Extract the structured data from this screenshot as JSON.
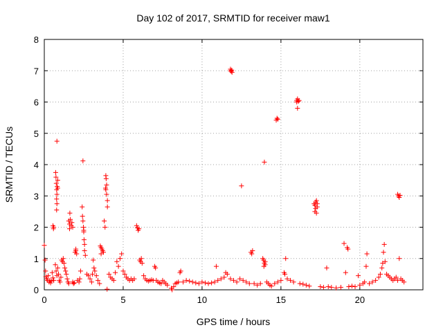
{
  "chart_data": {
    "type": "scatter",
    "title": "Day 102 of 2017, SRMTID for receiver maw1",
    "xlabel": "GPS time / hours",
    "ylabel": "SRMTID / TECUs",
    "xlim": [
      0,
      24
    ],
    "ylim": [
      0,
      8
    ],
    "xticks": [
      0,
      5,
      10,
      15,
      20
    ],
    "yticks": [
      0,
      1,
      2,
      3,
      4,
      5,
      6,
      7,
      8
    ],
    "grid": true,
    "marker": "+",
    "color": "#ff0000",
    "series": [
      {
        "name": "SRMTID",
        "points": [
          [
            0.0,
            1.42
          ],
          [
            0.05,
            0.95
          ],
          [
            0.08,
            0.6
          ],
          [
            0.1,
            0.42
          ],
          [
            0.15,
            0.35
          ],
          [
            0.2,
            0.3
          ],
          [
            0.25,
            0.45
          ],
          [
            0.3,
            0.25
          ],
          [
            0.35,
            0.3
          ],
          [
            0.4,
            0.22
          ],
          [
            0.45,
            0.28
          ],
          [
            0.5,
            0.55
          ],
          [
            0.55,
            0.38
          ],
          [
            0.6,
            0.3
          ],
          [
            0.55,
            2.05
          ],
          [
            0.6,
            2.0
          ],
          [
            0.58,
            1.95
          ],
          [
            0.72,
            3.75
          ],
          [
            0.74,
            3.6
          ],
          [
            0.76,
            3.4
          ],
          [
            0.78,
            3.2
          ],
          [
            0.8,
            3.05
          ],
          [
            0.78,
            2.9
          ],
          [
            0.8,
            2.75
          ],
          [
            0.82,
            3.3
          ],
          [
            0.85,
            3.25
          ],
          [
            0.8,
            4.75
          ],
          [
            0.85,
            3.5
          ],
          [
            0.78,
            2.55
          ],
          [
            0.7,
            0.8
          ],
          [
            0.75,
            0.6
          ],
          [
            0.8,
            0.45
          ],
          [
            0.85,
            0.7
          ],
          [
            0.9,
            0.5
          ],
          [
            0.95,
            0.3
          ],
          [
            1.0,
            0.25
          ],
          [
            1.05,
            0.4
          ],
          [
            1.1,
            0.95
          ],
          [
            1.15,
            0.9
          ],
          [
            1.2,
            1.0
          ],
          [
            1.25,
            0.85
          ],
          [
            1.3,
            0.7
          ],
          [
            1.35,
            0.6
          ],
          [
            1.4,
            0.5
          ],
          [
            1.45,
            0.35
          ],
          [
            1.5,
            0.25
          ],
          [
            1.55,
            0.2
          ],
          [
            1.55,
            2.2
          ],
          [
            1.6,
            2.1
          ],
          [
            1.65,
            2.25
          ],
          [
            1.7,
            2.05
          ],
          [
            1.75,
            2.15
          ],
          [
            1.8,
            2.0
          ],
          [
            1.6,
            1.95
          ],
          [
            1.62,
            2.45
          ],
          [
            1.8,
            0.25
          ],
          [
            1.85,
            0.2
          ],
          [
            1.9,
            0.22
          ],
          [
            1.95,
            1.2
          ],
          [
            2.0,
            1.25
          ],
          [
            2.05,
            1.15
          ],
          [
            2.0,
            1.3
          ],
          [
            2.1,
            0.3
          ],
          [
            2.2,
            0.25
          ],
          [
            2.25,
            0.35
          ],
          [
            2.3,
            0.6
          ],
          [
            2.45,
            4.12
          ],
          [
            2.4,
            2.65
          ],
          [
            2.42,
            2.35
          ],
          [
            2.45,
            2.2
          ],
          [
            2.48,
            2.0
          ],
          [
            2.5,
            1.85
          ],
          [
            2.52,
            1.6
          ],
          [
            2.55,
            1.45
          ],
          [
            2.5,
            1.9
          ],
          [
            2.55,
            1.25
          ],
          [
            2.6,
            1.1
          ],
          [
            2.7,
            0.5
          ],
          [
            2.8,
            0.45
          ],
          [
            2.9,
            0.35
          ],
          [
            3.0,
            0.25
          ],
          [
            3.05,
            0.5
          ],
          [
            3.1,
            0.95
          ],
          [
            3.15,
            0.7
          ],
          [
            3.2,
            0.6
          ],
          [
            3.3,
            0.45
          ],
          [
            3.4,
            0.3
          ],
          [
            3.5,
            0.2
          ],
          [
            3.55,
            1.4
          ],
          [
            3.6,
            1.35
          ],
          [
            3.65,
            1.3
          ],
          [
            3.7,
            1.25
          ],
          [
            3.75,
            1.2
          ],
          [
            3.6,
            1.15
          ],
          [
            3.8,
            2.2
          ],
          [
            3.85,
            2.0
          ],
          [
            3.9,
            3.65
          ],
          [
            3.92,
            3.55
          ],
          [
            3.95,
            3.35
          ],
          [
            3.9,
            3.2
          ],
          [
            3.95,
            3.05
          ],
          [
            4.0,
            2.85
          ],
          [
            4.0,
            2.65
          ],
          [
            3.88,
            3.25
          ],
          [
            3.98,
            0.02
          ],
          [
            4.1,
            0.5
          ],
          [
            4.2,
            0.4
          ],
          [
            4.3,
            0.35
          ],
          [
            4.4,
            0.3
          ],
          [
            4.5,
            0.55
          ],
          [
            4.6,
            0.9
          ],
          [
            4.7,
            0.75
          ],
          [
            4.8,
            1.0
          ],
          [
            4.9,
            1.15
          ],
          [
            5.0,
            0.6
          ],
          [
            5.1,
            0.5
          ],
          [
            5.2,
            0.4
          ],
          [
            5.3,
            0.35
          ],
          [
            5.4,
            0.3
          ],
          [
            5.5,
            0.35
          ],
          [
            5.6,
            0.3
          ],
          [
            5.7,
            0.35
          ],
          [
            5.85,
            2.05
          ],
          [
            5.9,
            1.98
          ],
          [
            5.95,
            1.9
          ],
          [
            6.0,
            1.95
          ],
          [
            6.05,
            0.95
          ],
          [
            6.1,
            0.9
          ],
          [
            6.15,
            1.0
          ],
          [
            6.2,
            0.85
          ],
          [
            6.3,
            0.45
          ],
          [
            6.4,
            0.35
          ],
          [
            6.5,
            0.3
          ],
          [
            6.6,
            0.28
          ],
          [
            6.7,
            0.3
          ],
          [
            6.8,
            0.32
          ],
          [
            6.9,
            0.3
          ],
          [
            7.0,
            0.75
          ],
          [
            7.05,
            0.7
          ],
          [
            7.1,
            0.3
          ],
          [
            7.2,
            0.25
          ],
          [
            7.3,
            0.22
          ],
          [
            7.4,
            0.2
          ],
          [
            7.5,
            0.3
          ],
          [
            7.6,
            0.25
          ],
          [
            7.7,
            0.2
          ],
          [
            7.8,
            0.15
          ],
          [
            8.05,
            0.05
          ],
          [
            8.1,
            0.0
          ],
          [
            8.2,
            0.1
          ],
          [
            8.3,
            0.2
          ],
          [
            8.4,
            0.22
          ],
          [
            8.5,
            0.25
          ],
          [
            8.6,
            0.55
          ],
          [
            8.65,
            0.6
          ],
          [
            8.8,
            0.25
          ],
          [
            9.0,
            0.3
          ],
          [
            9.2,
            0.28
          ],
          [
            9.4,
            0.25
          ],
          [
            9.6,
            0.22
          ],
          [
            9.8,
            0.2
          ],
          [
            10.0,
            0.25
          ],
          [
            10.2,
            0.22
          ],
          [
            10.4,
            0.2
          ],
          [
            10.6,
            0.22
          ],
          [
            10.8,
            0.25
          ],
          [
            10.9,
            0.75
          ],
          [
            11.0,
            0.3
          ],
          [
            11.2,
            0.35
          ],
          [
            11.4,
            0.4
          ],
          [
            11.5,
            0.55
          ],
          [
            11.6,
            0.5
          ],
          [
            11.8,
            0.35
          ],
          [
            11.8,
            7.05
          ],
          [
            11.85,
            6.98
          ],
          [
            11.9,
            6.95
          ],
          [
            11.82,
            7.0
          ],
          [
            11.88,
            7.02
          ],
          [
            12.0,
            0.3
          ],
          [
            12.2,
            0.25
          ],
          [
            12.5,
            3.32
          ],
          [
            12.4,
            0.35
          ],
          [
            12.6,
            0.3
          ],
          [
            12.8,
            0.25
          ],
          [
            13.0,
            0.2
          ],
          [
            13.1,
            1.2
          ],
          [
            13.15,
            1.15
          ],
          [
            13.2,
            1.25
          ],
          [
            13.3,
            0.2
          ],
          [
            13.5,
            0.15
          ],
          [
            13.7,
            0.2
          ],
          [
            13.85,
            1.0
          ],
          [
            13.9,
            0.95
          ],
          [
            13.95,
            0.85
          ],
          [
            14.0,
            0.8
          ],
          [
            13.92,
            0.75
          ],
          [
            14.0,
            0.9
          ],
          [
            13.95,
            4.08
          ],
          [
            14.1,
            0.25
          ],
          [
            14.2,
            0.2
          ],
          [
            14.3,
            0.15
          ],
          [
            14.4,
            0.12
          ],
          [
            14.6,
            0.2
          ],
          [
            14.7,
            5.42
          ],
          [
            14.75,
            5.48
          ],
          [
            14.8,
            5.45
          ],
          [
            14.8,
            0.25
          ],
          [
            15.0,
            0.3
          ],
          [
            15.2,
            0.55
          ],
          [
            15.25,
            0.5
          ],
          [
            15.3,
            1.0
          ],
          [
            15.4,
            0.35
          ],
          [
            15.6,
            0.3
          ],
          [
            15.8,
            0.25
          ],
          [
            16.0,
            6.05
          ],
          [
            16.05,
            6.1
          ],
          [
            16.1,
            6.02
          ],
          [
            16.15,
            6.05
          ],
          [
            16.0,
            6.0
          ],
          [
            16.05,
            5.8
          ],
          [
            16.2,
            0.2
          ],
          [
            16.4,
            0.18
          ],
          [
            16.6,
            0.15
          ],
          [
            16.8,
            0.12
          ],
          [
            17.1,
            2.75
          ],
          [
            17.15,
            2.7
          ],
          [
            17.2,
            2.8
          ],
          [
            17.25,
            2.85
          ],
          [
            17.3,
            2.75
          ],
          [
            17.2,
            2.6
          ],
          [
            17.15,
            2.5
          ],
          [
            17.25,
            2.45
          ],
          [
            17.3,
            2.65
          ],
          [
            17.5,
            0.1
          ],
          [
            17.7,
            0.08
          ],
          [
            17.9,
            0.7
          ],
          [
            18.0,
            0.1
          ],
          [
            18.2,
            0.08
          ],
          [
            18.5,
            0.06
          ],
          [
            18.8,
            0.08
          ],
          [
            19.0,
            1.48
          ],
          [
            19.1,
            0.55
          ],
          [
            19.2,
            1.35
          ],
          [
            19.25,
            1.3
          ],
          [
            19.3,
            0.1
          ],
          [
            19.5,
            0.12
          ],
          [
            19.7,
            0.1
          ],
          [
            19.9,
            0.45
          ],
          [
            20.0,
            0.15
          ],
          [
            20.2,
            0.2
          ],
          [
            20.3,
            0.25
          ],
          [
            20.4,
            0.75
          ],
          [
            20.45,
            1.15
          ],
          [
            20.6,
            0.2
          ],
          [
            20.8,
            0.25
          ],
          [
            21.0,
            0.3
          ],
          [
            21.2,
            0.4
          ],
          [
            21.3,
            0.5
          ],
          [
            21.4,
            0.7
          ],
          [
            21.45,
            0.85
          ],
          [
            21.5,
            1.2
          ],
          [
            21.55,
            1.45
          ],
          [
            21.6,
            0.9
          ],
          [
            21.7,
            0.5
          ],
          [
            21.8,
            0.45
          ],
          [
            21.9,
            0.4
          ],
          [
            22.0,
            0.35
          ],
          [
            22.1,
            0.3
          ],
          [
            22.2,
            0.35
          ],
          [
            22.3,
            0.4
          ],
          [
            22.4,
            0.3
          ],
          [
            22.5,
            1.0
          ],
          [
            22.6,
            0.35
          ],
          [
            22.7,
            0.3
          ],
          [
            22.8,
            0.25
          ],
          [
            22.4,
            3.05
          ],
          [
            22.45,
            3.0
          ],
          [
            22.5,
            2.95
          ],
          [
            22.55,
            3.02
          ]
        ]
      }
    ]
  }
}
